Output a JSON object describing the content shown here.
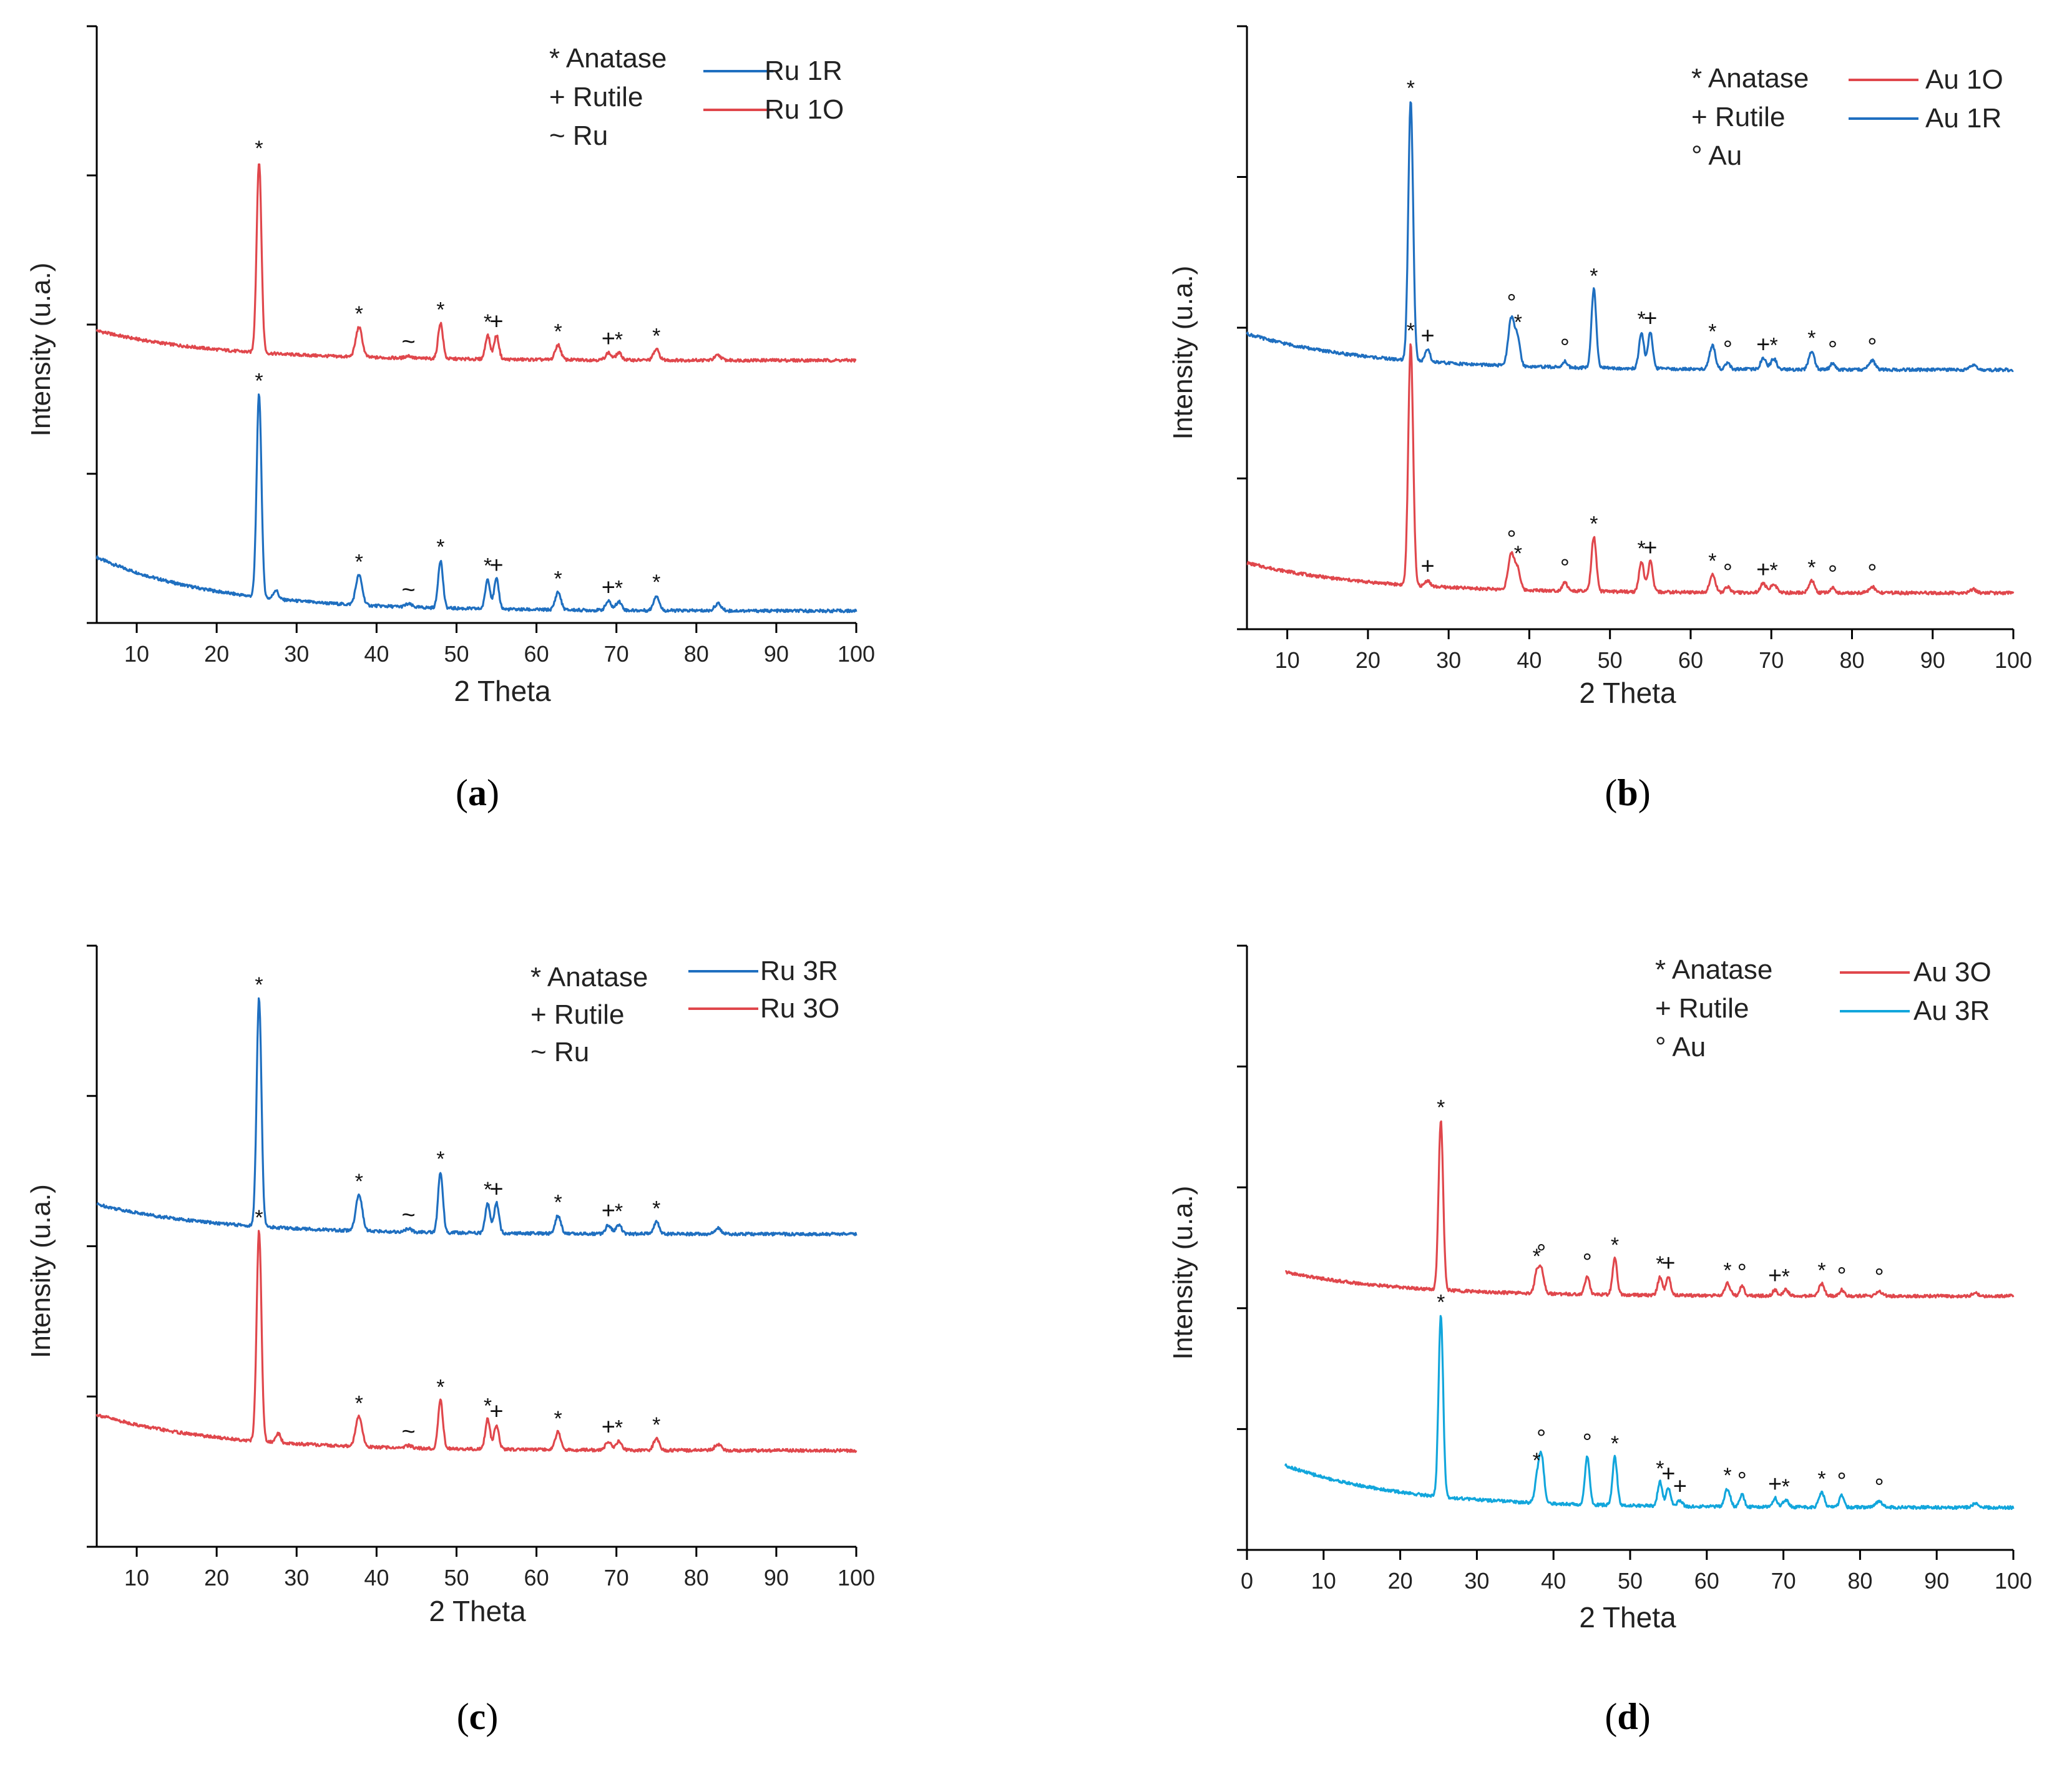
{
  "colors": {
    "red": "#e0474c",
    "blue": "#1f6fc0",
    "cyan": "#12a6dc",
    "axis": "#000000"
  },
  "chart_data": [
    {
      "type": "line",
      "panel_label_pre": "(",
      "panel_label_letter": "a",
      "panel_label_post": ")",
      "xlabel": "2 Theta",
      "ylabel": "Intensity (u.a.)",
      "xlim": [
        5,
        100
      ],
      "ylim": [
        0,
        100
      ],
      "xticks": [
        10,
        20,
        30,
        40,
        50,
        60,
        70,
        80,
        90,
        100
      ],
      "ytick_positions": [
        0,
        25,
        50,
        75,
        100
      ],
      "legend_markers": [
        "* Anatase",
        "+ Rutile",
        "~ Ru"
      ],
      "series": [
        {
          "name": "Ru 1R",
          "color": "blue",
          "legend_row": 0,
          "baseline": {
            "start": 11,
            "end": 2,
            "decay": 15
          },
          "peaks": [
            {
              "x": 25.3,
              "h": 34,
              "w": 0.3,
              "marker": "*"
            },
            {
              "x": 27.4,
              "h": 1.5,
              "w": 0.3
            },
            {
              "x": 37.8,
              "h": 5,
              "w": 0.4,
              "marker": "*"
            },
            {
              "x": 44.0,
              "h": 0.5,
              "w": 0.4,
              "marker": "~"
            },
            {
              "x": 48.0,
              "h": 8,
              "w": 0.3,
              "marker": "*"
            },
            {
              "x": 53.9,
              "h": 5,
              "w": 0.3,
              "marker": "*"
            },
            {
              "x": 55.0,
              "h": 5,
              "w": 0.3,
              "marker": "+"
            },
            {
              "x": 62.7,
              "h": 3,
              "w": 0.35,
              "marker": "*"
            },
            {
              "x": 69.0,
              "h": 1.5,
              "w": 0.35,
              "marker": "+"
            },
            {
              "x": 70.3,
              "h": 1.5,
              "w": 0.35,
              "marker": "*"
            },
            {
              "x": 75.0,
              "h": 2.5,
              "w": 0.35,
              "marker": "*"
            },
            {
              "x": 82.7,
              "h": 1.2,
              "w": 0.4
            }
          ]
        },
        {
          "name": "Ru 1O",
          "color": "red",
          "legend_row": 1,
          "baseline": {
            "start": 49,
            "end": 44,
            "decay": 15
          },
          "peaks": [
            {
              "x": 25.3,
              "h": 32,
              "w": 0.3,
              "marker": "*"
            },
            {
              "x": 37.8,
              "h": 5,
              "w": 0.4,
              "marker": "*"
            },
            {
              "x": 44.0,
              "h": 0.4,
              "w": 0.4,
              "marker": "~"
            },
            {
              "x": 48.0,
              "h": 6,
              "w": 0.3,
              "marker": "*"
            },
            {
              "x": 53.9,
              "h": 4,
              "w": 0.3,
              "marker": "*"
            },
            {
              "x": 55.0,
              "h": 4,
              "w": 0.3,
              "marker": "+"
            },
            {
              "x": 62.7,
              "h": 2.5,
              "w": 0.35,
              "marker": "*"
            },
            {
              "x": 69.0,
              "h": 1.2,
              "w": 0.35,
              "marker": "+"
            },
            {
              "x": 70.3,
              "h": 1.2,
              "w": 0.35,
              "marker": "*"
            },
            {
              "x": 75.0,
              "h": 1.8,
              "w": 0.35,
              "marker": "*"
            },
            {
              "x": 82.7,
              "h": 0.8,
              "w": 0.4
            }
          ]
        }
      ]
    },
    {
      "type": "line",
      "panel_label_pre": "(",
      "panel_label_letter": "b",
      "panel_label_post": ")",
      "xlabel": "2 Theta",
      "ylabel": "Intensity (u.a.)",
      "xlim": [
        5,
        100
      ],
      "ylim": [
        0,
        100
      ],
      "xticks": [
        10,
        20,
        30,
        40,
        50,
        60,
        70,
        80,
        90,
        100
      ],
      "ytick_positions": [
        0,
        25,
        50,
        75,
        100
      ],
      "legend_markers": [
        "* Anatase",
        "+ Rutile",
        "° Au"
      ],
      "series": [
        {
          "name": "Au 1O",
          "color": "red",
          "legend_row": 0,
          "baseline": {
            "start": 11,
            "end": 6,
            "decay": 15
          },
          "peaks": [
            {
              "x": 25.3,
              "h": 40,
              "w": 0.3,
              "marker": "*"
            },
            {
              "x": 27.4,
              "h": 1,
              "w": 0.3,
              "marker": "+"
            },
            {
              "x": 37.8,
              "h": 6,
              "w": 0.4,
              "marker": "°"
            },
            {
              "x": 38.6,
              "h": 3,
              "w": 0.3,
              "marker": "*"
            },
            {
              "x": 44.4,
              "h": 1.5,
              "w": 0.3,
              "marker": "°"
            },
            {
              "x": 48.0,
              "h": 9,
              "w": 0.3,
              "marker": "*"
            },
            {
              "x": 53.9,
              "h": 5,
              "w": 0.3,
              "marker": "*"
            },
            {
              "x": 55.0,
              "h": 5,
              "w": 0.3,
              "marker": "+"
            },
            {
              "x": 62.7,
              "h": 3,
              "w": 0.35,
              "marker": "*"
            },
            {
              "x": 64.6,
              "h": 1,
              "w": 0.3,
              "marker": "°"
            },
            {
              "x": 69.0,
              "h": 1.5,
              "w": 0.35,
              "marker": "+"
            },
            {
              "x": 70.3,
              "h": 1.5,
              "w": 0.35,
              "marker": "*"
            },
            {
              "x": 75.0,
              "h": 2,
              "w": 0.35,
              "marker": "*"
            },
            {
              "x": 77.6,
              "h": 0.8,
              "w": 0.3,
              "marker": "°"
            },
            {
              "x": 82.5,
              "h": 1,
              "w": 0.4,
              "marker": "°"
            },
            {
              "x": 95.0,
              "h": 0.6,
              "w": 0.4
            }
          ]
        },
        {
          "name": "Au 1R",
          "color": "blue",
          "legend_row": 1,
          "baseline": {
            "start": 49,
            "end": 43,
            "decay": 15
          },
          "peaks": [
            {
              "x": 25.3,
              "h": 43,
              "w": 0.3,
              "marker": "*"
            },
            {
              "x": 27.4,
              "h": 2,
              "w": 0.3,
              "marker": "+"
            },
            {
              "x": 37.8,
              "h": 8,
              "w": 0.4,
              "marker": "°"
            },
            {
              "x": 38.6,
              "h": 4,
              "w": 0.3,
              "marker": "*"
            },
            {
              "x": 44.4,
              "h": 1,
              "w": 0.3,
              "marker": "°"
            },
            {
              "x": 48.0,
              "h": 13,
              "w": 0.3,
              "marker": "*"
            },
            {
              "x": 53.9,
              "h": 6,
              "w": 0.3,
              "marker": "*"
            },
            {
              "x": 55.0,
              "h": 6,
              "w": 0.3,
              "marker": "+"
            },
            {
              "x": 62.7,
              "h": 4,
              "w": 0.35,
              "marker": "*"
            },
            {
              "x": 64.6,
              "h": 1,
              "w": 0.3,
              "marker": "°"
            },
            {
              "x": 69.0,
              "h": 1.8,
              "w": 0.35,
              "marker": "+"
            },
            {
              "x": 70.3,
              "h": 1.8,
              "w": 0.35,
              "marker": "*"
            },
            {
              "x": 75.0,
              "h": 3,
              "w": 0.35,
              "marker": "*"
            },
            {
              "x": 77.6,
              "h": 1,
              "w": 0.3,
              "marker": "°"
            },
            {
              "x": 82.5,
              "h": 1.5,
              "w": 0.4,
              "marker": "°"
            },
            {
              "x": 95.0,
              "h": 0.8,
              "w": 0.4
            }
          ]
        }
      ]
    },
    {
      "type": "line",
      "panel_label_pre": "(",
      "panel_label_letter": "c",
      "panel_label_post": ")",
      "xlabel": "2 Theta",
      "ylabel": "Intensity (u.a.)",
      "xlim": [
        5,
        100
      ],
      "ylim": [
        0,
        100
      ],
      "xticks": [
        10,
        20,
        30,
        40,
        50,
        60,
        70,
        80,
        90,
        100
      ],
      "ytick_positions": [
        0,
        25,
        50,
        75,
        100
      ],
      "legend_markers": [
        "* Anatase",
        "+ Rutile",
        "~ Ru"
      ],
      "series": [
        {
          "name": "Ru 3R",
          "color": "blue",
          "legend_row": 0,
          "baseline": {
            "start": 57,
            "end": 52,
            "decay": 15
          },
          "peaks": [
            {
              "x": 25.3,
              "h": 38,
              "w": 0.3,
              "marker": "*"
            },
            {
              "x": 37.8,
              "h": 6,
              "w": 0.4,
              "marker": "*"
            },
            {
              "x": 44.0,
              "h": 0.5,
              "w": 0.4,
              "marker": "~"
            },
            {
              "x": 48.0,
              "h": 10,
              "w": 0.3,
              "marker": "*"
            },
            {
              "x": 53.9,
              "h": 5,
              "w": 0.3,
              "marker": "*"
            },
            {
              "x": 55.0,
              "h": 5,
              "w": 0.3,
              "marker": "+"
            },
            {
              "x": 62.7,
              "h": 3,
              "w": 0.35,
              "marker": "*"
            },
            {
              "x": 69.0,
              "h": 1.5,
              "w": 0.35,
              "marker": "+"
            },
            {
              "x": 70.3,
              "h": 1.5,
              "w": 0.35,
              "marker": "*"
            },
            {
              "x": 75.0,
              "h": 2,
              "w": 0.35,
              "marker": "*"
            },
            {
              "x": 82.7,
              "h": 1,
              "w": 0.4
            }
          ]
        },
        {
          "name": "Ru 3O",
          "color": "red",
          "legend_row": 1,
          "baseline": {
            "start": 22,
            "end": 16,
            "decay": 15
          },
          "peaks": [
            {
              "x": 25.3,
              "h": 35,
              "w": 0.3,
              "marker": "*"
            },
            {
              "x": 27.7,
              "h": 1.5,
              "w": 0.3
            },
            {
              "x": 37.8,
              "h": 5,
              "w": 0.4,
              "marker": "*"
            },
            {
              "x": 44.0,
              "h": 0.4,
              "w": 0.4,
              "marker": "~"
            },
            {
              "x": 48.0,
              "h": 8,
              "w": 0.3,
              "marker": "*"
            },
            {
              "x": 53.9,
              "h": 5,
              "w": 0.3,
              "marker": "*"
            },
            {
              "x": 55.0,
              "h": 4,
              "w": 0.3,
              "marker": "+"
            },
            {
              "x": 62.7,
              "h": 3,
              "w": 0.35,
              "marker": "*"
            },
            {
              "x": 69.0,
              "h": 1.5,
              "w": 0.35,
              "marker": "+"
            },
            {
              "x": 70.3,
              "h": 1.5,
              "w": 0.35,
              "marker": "*"
            },
            {
              "x": 75.0,
              "h": 2,
              "w": 0.35,
              "marker": "*"
            },
            {
              "x": 82.7,
              "h": 1,
              "w": 0.4
            }
          ]
        }
      ]
    },
    {
      "type": "line",
      "panel_label_pre": "(",
      "panel_label_letter": "d",
      "panel_label_post": ")",
      "xlabel": "2 Theta",
      "ylabel": "Intensity (u.a.)",
      "xlim": [
        0,
        100
      ],
      "ylim": [
        0,
        100
      ],
      "xticks": [
        0,
        10,
        20,
        30,
        40,
        50,
        60,
        70,
        80,
        90,
        100
      ],
      "ytick_positions": [
        0,
        20,
        40,
        60,
        80,
        100
      ],
      "legend_markers": [
        "* Anatase",
        "+ Rutile",
        "° Au"
      ],
      "series": [
        {
          "name": "Au 3O",
          "color": "red",
          "legend_row": 0,
          "baseline": {
            "start": 46,
            "end": 42,
            "decay": 15
          },
          "peaks": [
            {
              "x": 25.3,
              "h": 28,
              "w": 0.3,
              "marker": "*"
            },
            {
              "x": 37.8,
              "h": 3,
              "w": 0.3,
              "marker": "*"
            },
            {
              "x": 38.4,
              "h": 4,
              "w": 0.35,
              "marker": "°"
            },
            {
              "x": 44.4,
              "h": 3,
              "w": 0.3,
              "marker": "°"
            },
            {
              "x": 48.0,
              "h": 6,
              "w": 0.3,
              "marker": "*"
            },
            {
              "x": 53.9,
              "h": 3,
              "w": 0.3,
              "marker": "*"
            },
            {
              "x": 55.0,
              "h": 3,
              "w": 0.3,
              "marker": "+"
            },
            {
              "x": 62.7,
              "h": 2,
              "w": 0.35,
              "marker": "*"
            },
            {
              "x": 64.6,
              "h": 1.5,
              "w": 0.3,
              "marker": "°"
            },
            {
              "x": 68.9,
              "h": 1,
              "w": 0.3,
              "marker": "+"
            },
            {
              "x": 70.3,
              "h": 1,
              "w": 0.35,
              "marker": "*"
            },
            {
              "x": 75.0,
              "h": 2,
              "w": 0.35,
              "marker": "*"
            },
            {
              "x": 77.6,
              "h": 1,
              "w": 0.3,
              "marker": "°"
            },
            {
              "x": 82.5,
              "h": 0.8,
              "w": 0.4,
              "marker": "°"
            },
            {
              "x": 95.0,
              "h": 0.5,
              "w": 0.4
            }
          ]
        },
        {
          "name": "Au 3R",
          "color": "cyan",
          "legend_row": 1,
          "baseline": {
            "start": 14,
            "end": 7,
            "decay": 15
          },
          "peaks": [
            {
              "x": 25.3,
              "h": 30,
              "w": 0.3,
              "marker": "*"
            },
            {
              "x": 37.8,
              "h": 3,
              "w": 0.3,
              "marker": "*"
            },
            {
              "x": 38.4,
              "h": 8,
              "w": 0.35,
              "marker": "°"
            },
            {
              "x": 44.4,
              "h": 8,
              "w": 0.3,
              "marker": "°"
            },
            {
              "x": 48.0,
              "h": 8,
              "w": 0.3,
              "marker": "*"
            },
            {
              "x": 53.9,
              "h": 4,
              "w": 0.3,
              "marker": "*"
            },
            {
              "x": 55.0,
              "h": 3,
              "w": 0.3,
              "marker": "+"
            },
            {
              "x": 56.5,
              "h": 1,
              "w": 0.3,
              "marker": "+"
            },
            {
              "x": 62.7,
              "h": 3,
              "w": 0.35,
              "marker": "*"
            },
            {
              "x": 64.6,
              "h": 2,
              "w": 0.3,
              "marker": "°"
            },
            {
              "x": 68.9,
              "h": 1.5,
              "w": 0.3,
              "marker": "+"
            },
            {
              "x": 70.3,
              "h": 1.2,
              "w": 0.35,
              "marker": "*"
            },
            {
              "x": 75.0,
              "h": 2.5,
              "w": 0.35,
              "marker": "*"
            },
            {
              "x": 77.6,
              "h": 2,
              "w": 0.3,
              "marker": "°"
            },
            {
              "x": 82.5,
              "h": 1,
              "w": 0.4,
              "marker": "°"
            },
            {
              "x": 95.0,
              "h": 0.6,
              "w": 0.4
            }
          ]
        }
      ]
    }
  ]
}
